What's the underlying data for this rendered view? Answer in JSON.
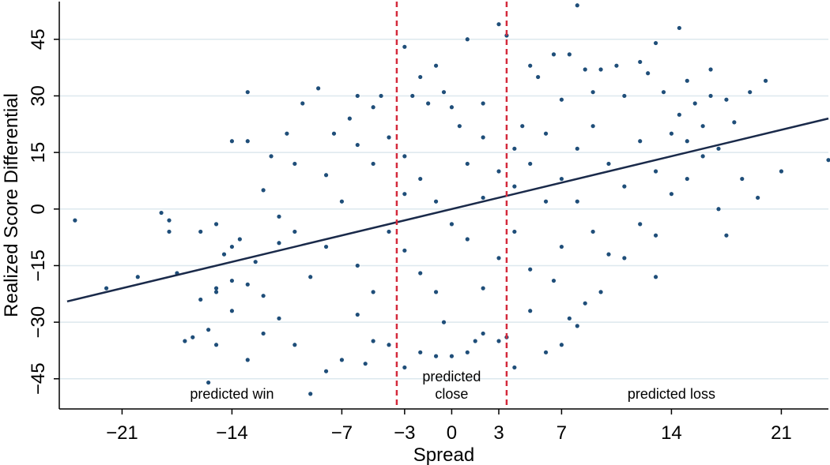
{
  "chart_data": {
    "type": "scatter",
    "title": "",
    "xlabel": "Spread",
    "ylabel": "Realized Score Differential",
    "xlim": [
      -25,
      24
    ],
    "ylim": [
      -53,
      55
    ],
    "x_ticks": [
      -21,
      -14,
      -7,
      -3,
      0,
      3,
      7,
      14,
      21
    ],
    "x_tick_labels": [
      "−21",
      "−14",
      "−7",
      "−3",
      "0",
      "3",
      "7",
      "14",
      "21"
    ],
    "y_ticks": [
      -45,
      -30,
      -15,
      0,
      15,
      30,
      45
    ],
    "y_tick_labels": [
      "−45",
      "−30",
      "−15",
      "0",
      "15",
      "30",
      "45"
    ],
    "grid": "horizontal",
    "legend": "none",
    "colors": {
      "points": "#1f4e79",
      "fit_line": "#1a2a4a",
      "cutoff_lines": "#d42a3c",
      "grid": "#dde8ee"
    },
    "cutoffs": [
      -3.5,
      3.5
    ],
    "fit_line": {
      "x": [
        -24.5,
        24
      ],
      "y": [
        -24.5,
        24
      ]
    },
    "regions": [
      {
        "label_lines": [
          "predicted win"
        ],
        "x": -14
      },
      {
        "label_lines": [
          "predicted",
          "close"
        ],
        "x": 0
      },
      {
        "label_lines": [
          "predicted loss"
        ],
        "x": 14
      }
    ],
    "series": [
      {
        "points": [
          [
            -24,
            -3
          ],
          [
            -22,
            -21
          ],
          [
            -20,
            -18
          ],
          [
            -18.5,
            -1
          ],
          [
            -18,
            -3
          ],
          [
            -18,
            -6
          ],
          [
            -17.5,
            -17
          ],
          [
            -17,
            -35
          ],
          [
            -16.5,
            -34
          ],
          [
            -16,
            -6
          ],
          [
            -16,
            -24
          ],
          [
            -15.5,
            -32
          ],
          [
            -15.5,
            -46
          ],
          [
            -15,
            -4
          ],
          [
            -15,
            -22
          ],
          [
            -15,
            -36
          ],
          [
            -14.5,
            -12
          ],
          [
            -14,
            18
          ],
          [
            -14,
            -10
          ],
          [
            -14,
            -27
          ],
          [
            -13.5,
            -8
          ],
          [
            -13,
            31
          ],
          [
            -13,
            18
          ],
          [
            -13,
            -20
          ],
          [
            -13,
            -40
          ],
          [
            -12.5,
            -14
          ],
          [
            -12,
            5
          ],
          [
            -12,
            -33
          ],
          [
            -11.5,
            14
          ],
          [
            -11,
            -2
          ],
          [
            -11,
            -29
          ],
          [
            -10.5,
            20
          ],
          [
            -10,
            12
          ],
          [
            -10,
            -6
          ],
          [
            -10,
            -36
          ],
          [
            -9.5,
            28
          ],
          [
            -9,
            -18
          ],
          [
            -9,
            -49
          ],
          [
            -8.5,
            32
          ],
          [
            -8,
            -10
          ],
          [
            -8,
            -43
          ],
          [
            -7.5,
            20
          ],
          [
            -7,
            -40
          ],
          [
            -6.5,
            24
          ],
          [
            -6,
            30
          ],
          [
            -6,
            -28
          ],
          [
            -5.5,
            -41
          ],
          [
            -5,
            27
          ],
          [
            -5,
            -35
          ],
          [
            -4.5,
            30
          ],
          [
            -4,
            -36
          ],
          [
            -3,
            43
          ],
          [
            -3,
            -42
          ],
          [
            -2.5,
            30
          ],
          [
            -2,
            35
          ],
          [
            -2,
            -38
          ],
          [
            -1.5,
            28
          ],
          [
            -1,
            38
          ],
          [
            -1,
            -39
          ],
          [
            -0.5,
            31
          ],
          [
            -0.5,
            -30
          ],
          [
            0,
            27
          ],
          [
            0,
            -39
          ],
          [
            0.5,
            22
          ],
          [
            1,
            45
          ],
          [
            1,
            -38
          ],
          [
            1.5,
            -35
          ],
          [
            2,
            28
          ],
          [
            2,
            -33
          ],
          [
            3,
            49
          ],
          [
            3,
            -35
          ],
          [
            3.5,
            46
          ],
          [
            3.5,
            -34
          ],
          [
            4,
            -42
          ],
          [
            4.5,
            22
          ],
          [
            5,
            38
          ],
          [
            5,
            -27
          ],
          [
            5.5,
            35
          ],
          [
            6,
            -38
          ],
          [
            6.5,
            41
          ],
          [
            6.5,
            -19
          ],
          [
            7,
            29
          ],
          [
            7,
            -36
          ],
          [
            7.5,
            41
          ],
          [
            7.5,
            -29
          ],
          [
            8,
            54
          ],
          [
            8,
            -31
          ],
          [
            8.5,
            37
          ],
          [
            8.5,
            -25
          ],
          [
            9,
            31
          ],
          [
            9.5,
            37
          ],
          [
            9.5,
            -22
          ],
          [
            10,
            -12
          ],
          [
            10.5,
            38
          ],
          [
            11,
            30
          ],
          [
            11,
            -13
          ],
          [
            12,
            39
          ],
          [
            12,
            -4
          ],
          [
            12.5,
            36
          ],
          [
            13,
            44
          ],
          [
            13,
            -7
          ],
          [
            13,
            -18
          ],
          [
            13.5,
            31
          ],
          [
            14,
            20
          ],
          [
            14.5,
            48
          ],
          [
            14.5,
            25
          ],
          [
            15,
            34
          ],
          [
            15,
            18
          ],
          [
            15.5,
            28
          ],
          [
            16,
            14
          ],
          [
            16.5,
            30
          ],
          [
            16.5,
            37
          ],
          [
            17,
            16
          ],
          [
            17,
            0
          ],
          [
            17.5,
            29
          ],
          [
            17.5,
            -7
          ],
          [
            18,
            23
          ],
          [
            18.5,
            8
          ],
          [
            19,
            31
          ],
          [
            19.5,
            3
          ],
          [
            20,
            34
          ],
          [
            21,
            10
          ],
          [
            24,
            13
          ],
          [
            -15,
            -21
          ],
          [
            -14,
            -19
          ],
          [
            -12,
            -23
          ],
          [
            -11,
            -9
          ],
          [
            -8,
            9
          ],
          [
            -7,
            2
          ],
          [
            -6,
            17
          ],
          [
            -6,
            -15
          ],
          [
            -5,
            12
          ],
          [
            -5,
            -22
          ],
          [
            -4,
            19
          ],
          [
            -4,
            -6
          ],
          [
            -3,
            14
          ],
          [
            -3,
            4
          ],
          [
            -3,
            -11
          ],
          [
            -2,
            8
          ],
          [
            -2,
            -17
          ],
          [
            -1,
            2
          ],
          [
            -1,
            -22
          ],
          [
            0,
            -4
          ],
          [
            1,
            12
          ],
          [
            1,
            -8
          ],
          [
            2,
            3
          ],
          [
            2,
            19
          ],
          [
            2,
            -21
          ],
          [
            3,
            10
          ],
          [
            3,
            -13
          ],
          [
            4,
            6
          ],
          [
            4,
            16
          ],
          [
            4,
            -6
          ],
          [
            5,
            12
          ],
          [
            5,
            -16
          ],
          [
            6,
            2
          ],
          [
            6,
            20
          ],
          [
            7,
            8
          ],
          [
            7,
            -10
          ],
          [
            8,
            16
          ],
          [
            8,
            2
          ],
          [
            9,
            22
          ],
          [
            9,
            -6
          ],
          [
            10,
            12
          ],
          [
            11,
            6
          ],
          [
            12,
            18
          ],
          [
            13,
            10
          ],
          [
            14,
            4
          ],
          [
            15,
            8
          ],
          [
            16,
            22
          ]
        ]
      }
    ]
  }
}
